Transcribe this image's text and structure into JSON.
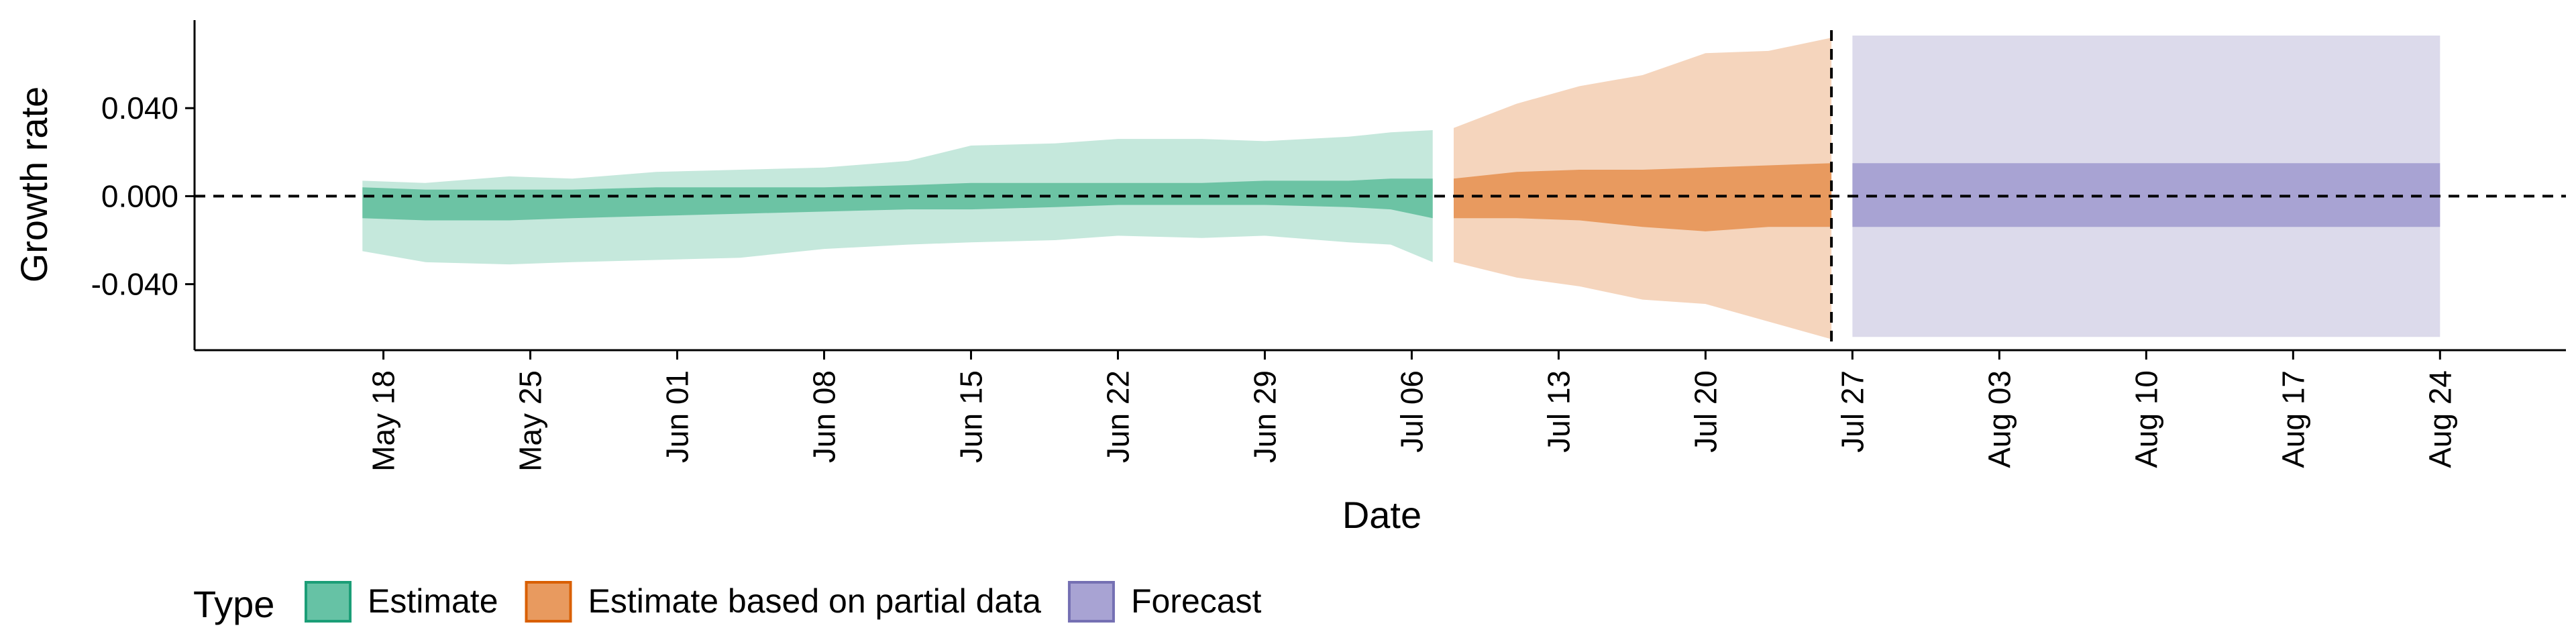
{
  "chart_data": {
    "type": "area",
    "xlabel": "Date",
    "ylabel": "Growth rate",
    "x_ticks": [
      "May 18",
      "May 25",
      "Jun 01",
      "Jun 08",
      "Jun 15",
      "Jun 22",
      "Jun 29",
      "Jul 06",
      "Jul 13",
      "Jul 20",
      "Jul 27",
      "Aug 03",
      "Aug 10",
      "Aug 17",
      "Aug 24"
    ],
    "x_tick_dates": [
      "2020-05-18",
      "2020-05-25",
      "2020-06-01",
      "2020-06-08",
      "2020-06-15",
      "2020-06-22",
      "2020-06-29",
      "2020-07-06",
      "2020-07-13",
      "2020-07-20",
      "2020-07-27",
      "2020-08-03",
      "2020-08-10",
      "2020-08-17",
      "2020-08-24"
    ],
    "xlim": [
      "2020-05-09",
      "2020-08-30"
    ],
    "y_ticks": [
      -0.04,
      0.0,
      0.04
    ],
    "y_tick_labels": [
      "-0.040",
      "0.000",
      "0.040"
    ],
    "ylim": [
      -0.07,
      0.08
    ],
    "reference_lines": {
      "horizontal_y": 0.0,
      "vertical_x": "2020-07-26"
    },
    "legend": {
      "title": "Type",
      "position": "bottom",
      "items": [
        {
          "label": "Estimate",
          "fill": "#66C2A5",
          "stroke": "#1B9E77"
        },
        {
          "label": "Estimate based on partial data",
          "fill": "#E89A5F",
          "stroke": "#D95F02"
        },
        {
          "label": "Forecast",
          "fill": "#A8A3D3",
          "stroke": "#7570B3"
        }
      ]
    },
    "series": [
      {
        "name": "Estimate",
        "color_outer": "#C5E8DC",
        "color_inner": "#6CC3A4",
        "points": [
          {
            "x": "2020-05-17",
            "outer": [
              -0.025,
              0.007
            ],
            "inner": [
              -0.01,
              0.004
            ]
          },
          {
            "x": "2020-05-20",
            "outer": [
              -0.03,
              0.006
            ],
            "inner": [
              -0.011,
              0.003
            ]
          },
          {
            "x": "2020-05-24",
            "outer": [
              -0.031,
              0.009
            ],
            "inner": [
              -0.011,
              0.003
            ]
          },
          {
            "x": "2020-05-27",
            "outer": [
              -0.03,
              0.008
            ],
            "inner": [
              -0.01,
              0.003
            ]
          },
          {
            "x": "2020-05-31",
            "outer": [
              -0.029,
              0.011
            ],
            "inner": [
              -0.009,
              0.004
            ]
          },
          {
            "x": "2020-06-04",
            "outer": [
              -0.028,
              0.012
            ],
            "inner": [
              -0.008,
              0.004
            ]
          },
          {
            "x": "2020-06-08",
            "outer": [
              -0.024,
              0.013
            ],
            "inner": [
              -0.007,
              0.004
            ]
          },
          {
            "x": "2020-06-12",
            "outer": [
              -0.022,
              0.016
            ],
            "inner": [
              -0.006,
              0.005
            ]
          },
          {
            "x": "2020-06-15",
            "outer": [
              -0.021,
              0.023
            ],
            "inner": [
              -0.006,
              0.006
            ]
          },
          {
            "x": "2020-06-19",
            "outer": [
              -0.02,
              0.024
            ],
            "inner": [
              -0.005,
              0.006
            ]
          },
          {
            "x": "2020-06-22",
            "outer": [
              -0.018,
              0.026
            ],
            "inner": [
              -0.004,
              0.006
            ]
          },
          {
            "x": "2020-06-26",
            "outer": [
              -0.019,
              0.026
            ],
            "inner": [
              -0.004,
              0.006
            ]
          },
          {
            "x": "2020-06-29",
            "outer": [
              -0.018,
              0.025
            ],
            "inner": [
              -0.004,
              0.007
            ]
          },
          {
            "x": "2020-07-03",
            "outer": [
              -0.021,
              0.027
            ],
            "inner": [
              -0.005,
              0.007
            ]
          },
          {
            "x": "2020-07-05",
            "outer": [
              -0.022,
              0.029
            ],
            "inner": [
              -0.006,
              0.008
            ]
          },
          {
            "x": "2020-07-07",
            "outer": [
              -0.03,
              0.03
            ],
            "inner": [
              -0.01,
              0.008
            ]
          }
        ]
      },
      {
        "name": "Estimate based on partial data",
        "color_outer": "#F5D5BD",
        "color_inner": "#E89A5F",
        "points": [
          {
            "x": "2020-07-08",
            "outer": [
              -0.03,
              0.031
            ],
            "inner": [
              -0.01,
              0.008
            ]
          },
          {
            "x": "2020-07-11",
            "outer": [
              -0.037,
              0.042
            ],
            "inner": [
              -0.01,
              0.011
            ]
          },
          {
            "x": "2020-07-14",
            "outer": [
              -0.041,
              0.05
            ],
            "inner": [
              -0.011,
              0.012
            ]
          },
          {
            "x": "2020-07-17",
            "outer": [
              -0.047,
              0.055
            ],
            "inner": [
              -0.014,
              0.012
            ]
          },
          {
            "x": "2020-07-20",
            "outer": [
              -0.049,
              0.065
            ],
            "inner": [
              -0.016,
              0.013
            ]
          },
          {
            "x": "2020-07-23",
            "outer": [
              -0.057,
              0.066
            ],
            "inner": [
              -0.014,
              0.014
            ]
          },
          {
            "x": "2020-07-26",
            "outer": [
              -0.065,
              0.072
            ],
            "inner": [
              -0.014,
              0.015
            ]
          }
        ]
      },
      {
        "name": "Forecast",
        "color_outer": "#DCDAEB",
        "color_inner": "#A8A3D3",
        "points": [
          {
            "x": "2020-07-27",
            "outer": [
              -0.064,
              0.073
            ],
            "inner": [
              -0.014,
              0.015
            ]
          },
          {
            "x": "2020-08-24",
            "outer": [
              -0.064,
              0.073
            ],
            "inner": [
              -0.014,
              0.015
            ]
          }
        ]
      }
    ]
  }
}
